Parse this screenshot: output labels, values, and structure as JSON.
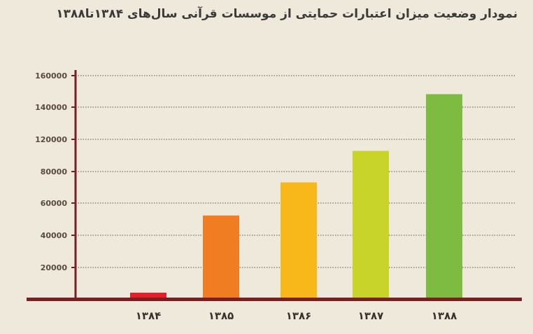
{
  "chart_data": {
    "type": "bar",
    "title": "نمودار وضعیت میزان اعتبارات حمایتی از موسسات قرآنی سال‌های ۱۳۸۴تا۱۳۸۸",
    "categories": [
      "۱۳۸۴",
      "۱۳۸۵",
      "۱۳۸۶",
      "۱۳۸۷",
      "۱۳۸۸"
    ],
    "values": [
      4000,
      53000,
      74000,
      94000,
      130000
    ],
    "colors": [
      "#e5202b",
      "#f07d22",
      "#f9b819",
      "#c9d42b",
      "#7dbc41"
    ],
    "ytick_labels": [
      "20000",
      "40000",
      "60000",
      "80000",
      "120000",
      "140000",
      "160000"
    ],
    "ylim": [
      0,
      140000
    ],
    "grid": true,
    "axis_color": "#7a1f1f"
  }
}
